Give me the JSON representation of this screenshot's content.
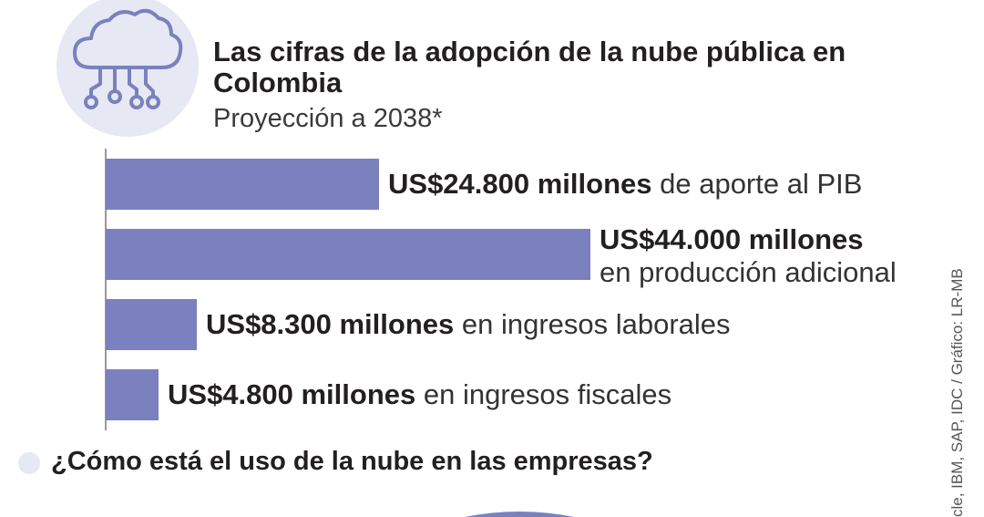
{
  "header": {
    "title": "Las cifras de la adopción de la nube pública en Colombia",
    "subtitle": "Proyección a 2038*",
    "icon": "cloud-network-icon"
  },
  "chart_data": {
    "type": "bar",
    "orientation": "horizontal",
    "unit": "US$ millones",
    "categories": [
      "de aporte al PIB",
      "en producción adicional",
      "en ingresos laborales",
      "en ingresos fiscales"
    ],
    "values": [
      24800,
      44000,
      8300,
      4800
    ],
    "labels": [
      {
        "bold": "US$24.800 millones",
        "rest": " de aporte al PIB"
      },
      {
        "bold": "US$44.000 millones",
        "rest": "en producción adicional"
      },
      {
        "bold": "US$8.300 millones",
        "rest": " en ingresos laborales"
      },
      {
        "bold": "US$4.800 millones",
        "rest": " en ingresos fiscales"
      }
    ],
    "xlim": [
      0,
      44000
    ]
  },
  "section": {
    "title": "¿Cómo está el uso de la nube en las empresas?"
  },
  "source": "cle, IBM, SAP, IDC / Gráfico: LR-MB",
  "colors": {
    "bar": "#7b80bf",
    "icon_bg": "#e6e8f3",
    "icon_stroke": "#7b80bf",
    "axis": "#999999"
  }
}
